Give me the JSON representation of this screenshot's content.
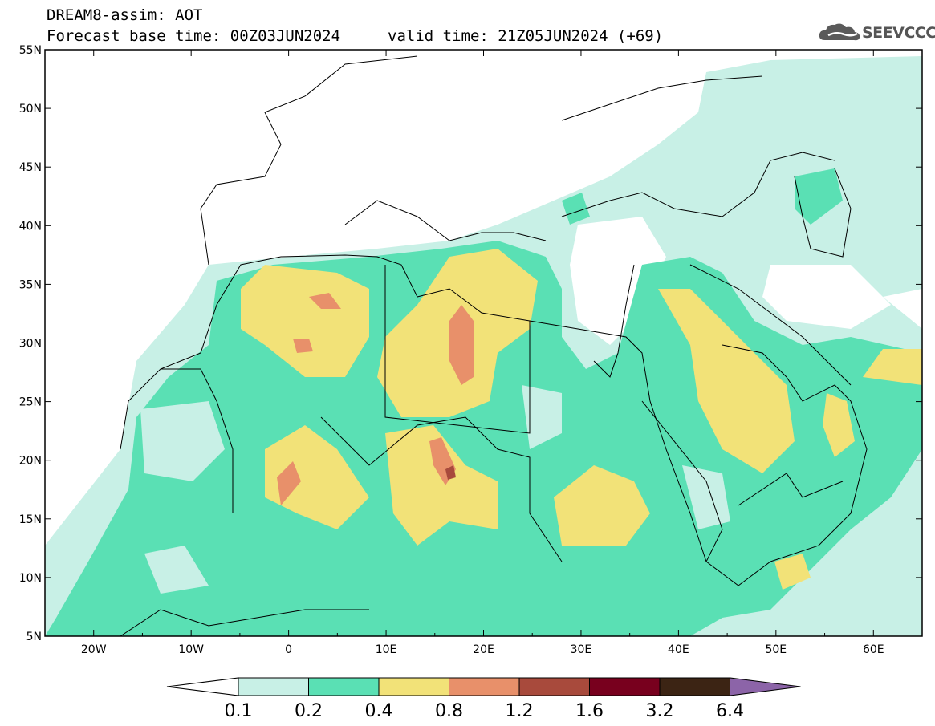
{
  "header": {
    "title_line1": "DREAM8-assim: AOT",
    "base_time": "Forecast base time: 00Z03JUN2024",
    "valid_time": "valid time: 21Z05JUN2024 (+69)",
    "logo_text": "SEEVCCC",
    "logo_icon": "cloud-icon"
  },
  "map": {
    "lon_range": [
      -25,
      65
    ],
    "lat_range": [
      5,
      55
    ],
    "lat_ticks": [
      "55N",
      "50N",
      "45N",
      "40N",
      "35N",
      "30N",
      "25N",
      "20N",
      "15N",
      "10N",
      "5N"
    ],
    "lon_ticks": [
      "20W",
      "10W",
      "0",
      "10E",
      "20E",
      "30E",
      "40E",
      "50E",
      "60E"
    ],
    "colorbar": {
      "levels": [
        "0.1",
        "0.2",
        "0.4",
        "0.8",
        "1.2",
        "1.6",
        "3.2",
        "6.4"
      ],
      "colors": [
        "#ffffff",
        "#c8f0e6",
        "#5ae0b4",
        "#f2e278",
        "#e8906a",
        "#a84a3c",
        "#78001e",
        "#3c2414",
        "#8c64a8"
      ]
    }
  }
}
